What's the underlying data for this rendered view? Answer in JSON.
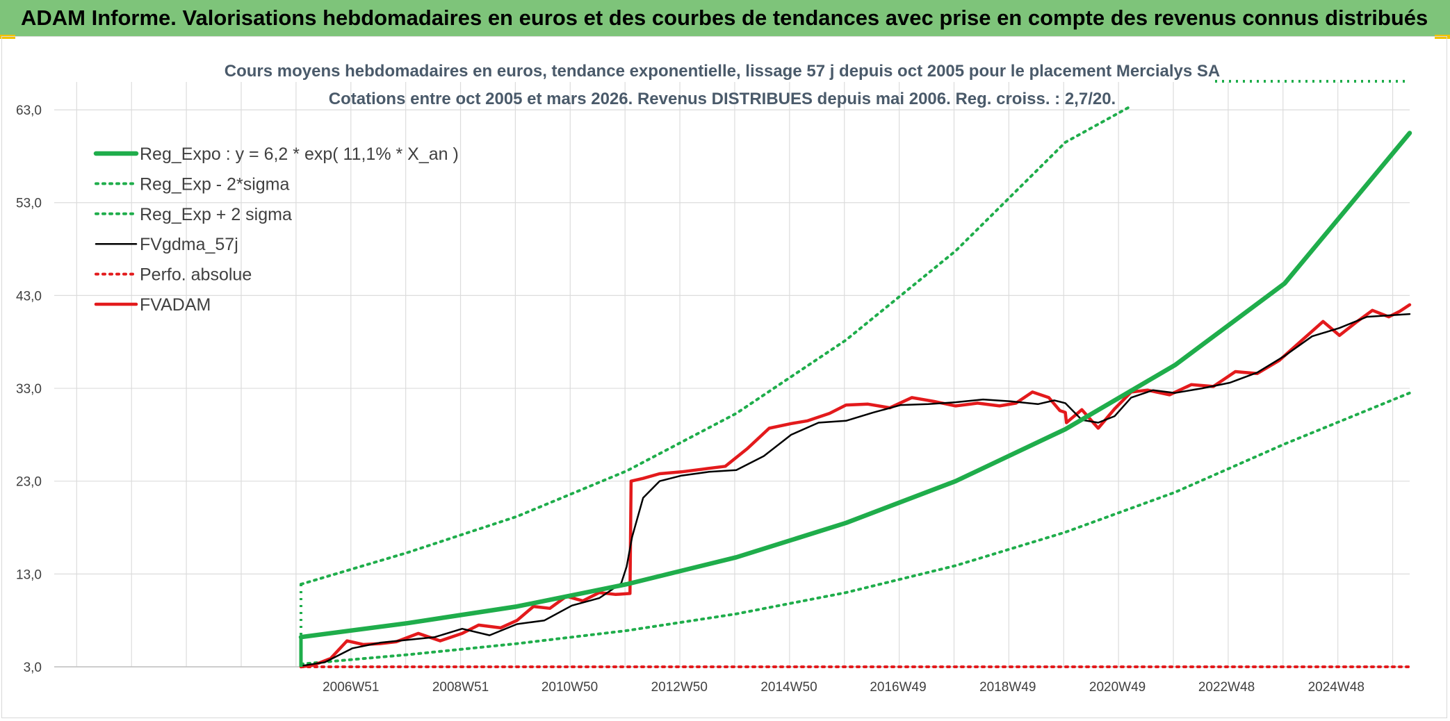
{
  "banner": {
    "title": "ADAM Informe. Valorisations hebdomadaires en euros et des courbes de tendances avec prise en compte des revenus connus distribués"
  },
  "chart_data": {
    "type": "line",
    "title": "Cours moyens hebdomadaires en euros, tendance exponentielle, lissage 57 j depuis oct 2005 pour le placement Mercialys SA",
    "subtitle": "Cotations entre oct 2005 et mars 2026. Revenus DISTRIBUES depuis mai 2006. Reg. croiss. : 2,7/20.",
    "xlabel": "",
    "ylabel": "",
    "ylim": [
      3,
      66
    ],
    "xlim": [
      2001.56,
      2026.28
    ],
    "y_ticks": [
      "3,0",
      "13,0",
      "23,0",
      "33,0",
      "43,0",
      "53,0",
      "63,0"
    ],
    "y_tick_values": [
      3,
      13,
      23,
      33,
      43,
      53,
      63
    ],
    "x_ticks": [
      "2006W51",
      "2008W51",
      "2010W50",
      "2012W50",
      "2014W50",
      "2016W49",
      "2018W49",
      "2020W49",
      "2022W48",
      "2024W48"
    ],
    "x_tick_values": [
      2006.97,
      2008.97,
      2010.96,
      2012.96,
      2014.96,
      2016.95,
      2018.95,
      2020.95,
      2022.94,
      2024.94
    ],
    "grid": true,
    "legend_position": "top-left",
    "series": [
      {
        "name": "Reg_Expo : y = 6,2 * exp( 11,1% *  X_an )",
        "color": "#1fad4b",
        "style": "solid-thick",
        "x": [
          2006.06,
          2008,
          2010,
          2012,
          2014,
          2016,
          2018,
          2020,
          2022,
          2024,
          2026.28
        ],
        "values": [
          6.2,
          7.7,
          9.5,
          11.9,
          14.8,
          18.5,
          23.0,
          28.6,
          35.5,
          44.3,
          60.5
        ]
      },
      {
        "name": "Reg_Exp - 2*sigma",
        "color": "#1fad4b",
        "style": "dotted",
        "x": [
          2006.06,
          2008,
          2010,
          2012,
          2014,
          2016,
          2018,
          2020,
          2022,
          2024,
          2026.28
        ],
        "values": [
          3.3,
          4.3,
          5.5,
          6.9,
          8.7,
          11.0,
          13.9,
          17.5,
          21.8,
          27.0,
          32.5
        ]
      },
      {
        "name": "Reg_Exp + 2 sigma",
        "color": "#1fad4b",
        "style": "dotted",
        "x": [
          2006.06,
          2008,
          2010,
          2012,
          2014,
          2016,
          2018,
          2020,
          2021.2
        ],
        "values": [
          11.9,
          15.3,
          19.2,
          24.1,
          30.3,
          38.2,
          47.8,
          59.5,
          63.4
        ]
      },
      {
        "name": "FVgdma_57j",
        "color": "#000000",
        "style": "solid",
        "x": [
          2006.06,
          2006.5,
          2007,
          2007.5,
          2008,
          2008.5,
          2009,
          2009.5,
          2010,
          2010.5,
          2011,
          2011.5,
          2011.9,
          2012.0,
          2012.1,
          2012.3,
          2012.6,
          2013,
          2013.5,
          2014,
          2014.5,
          2015,
          2015.5,
          2016,
          2016.5,
          2017,
          2017.5,
          2018,
          2018.5,
          2019,
          2019.5,
          2019.8,
          2020,
          2020.3,
          2020.6,
          2020.9,
          2021.2,
          2021.6,
          2022,
          2022.5,
          2023,
          2023.5,
          2024,
          2024.5,
          2025,
          2025.5,
          2026.28
        ],
        "values": [
          3.1,
          3.5,
          5.0,
          5.6,
          5.9,
          6.2,
          7.1,
          6.4,
          7.6,
          8.0,
          9.6,
          10.4,
          12.0,
          13.8,
          17.0,
          21.2,
          23.0,
          23.6,
          24.0,
          24.2,
          25.7,
          28.0,
          29.3,
          29.5,
          30.4,
          31.2,
          31.3,
          31.5,
          31.8,
          31.6,
          31.3,
          31.7,
          31.4,
          29.6,
          29.3,
          30.0,
          32.0,
          32.8,
          32.5,
          33.0,
          33.6,
          34.7,
          36.5,
          38.6,
          39.5,
          40.7,
          41.0
        ]
      },
      {
        "name": "Perfo. absolue",
        "color": "#e31a1c",
        "style": "dotted",
        "x": [
          2006.06,
          2026.28
        ],
        "values": [
          3.0,
          3.0
        ]
      },
      {
        "name": "FVADAM",
        "color": "#e31a1c",
        "style": "solid-thick",
        "x": [
          2006.06,
          2006.3,
          2006.6,
          2006.9,
          2007.2,
          2007.5,
          2007.8,
          2008.2,
          2008.6,
          2009.0,
          2009.3,
          2009.7,
          2010.0,
          2010.3,
          2010.6,
          2010.9,
          2011.2,
          2011.5,
          2011.8,
          2012.06,
          2012.08,
          2012.3,
          2012.6,
          2013,
          2013.4,
          2013.8,
          2014.2,
          2014.6,
          2015.0,
          2015.3,
          2015.7,
          2016.0,
          2016.4,
          2016.8,
          2017.2,
          2017.6,
          2018.0,
          2018.4,
          2018.8,
          2019.1,
          2019.4,
          2019.7,
          2019.9,
          2020.0,
          2020.02,
          2020.3,
          2020.6,
          2020.9,
          2021.2,
          2021.5,
          2021.9,
          2022.3,
          2022.7,
          2023.1,
          2023.5,
          2023.9,
          2024.3,
          2024.7,
          2025.0,
          2025.3,
          2025.6,
          2025.9,
          2026.1,
          2026.28
        ],
        "values": [
          3.0,
          3.2,
          3.9,
          5.8,
          5.4,
          5.5,
          5.7,
          6.6,
          5.8,
          6.6,
          7.5,
          7.2,
          8.0,
          9.5,
          9.3,
          10.6,
          10.1,
          11.0,
          10.8,
          10.9,
          23.0,
          23.3,
          23.8,
          24.0,
          24.3,
          24.6,
          26.5,
          28.7,
          29.2,
          29.5,
          30.3,
          31.2,
          31.3,
          30.9,
          32.0,
          31.6,
          31.1,
          31.4,
          31.1,
          31.4,
          32.6,
          32.0,
          30.6,
          30.4,
          29.3,
          30.7,
          28.7,
          30.8,
          32.6,
          32.8,
          32.3,
          33.4,
          33.2,
          34.8,
          34.6,
          36.0,
          38.1,
          40.2,
          38.7,
          40.1,
          41.4,
          40.7,
          41.3,
          42.0
        ]
      }
    ]
  }
}
